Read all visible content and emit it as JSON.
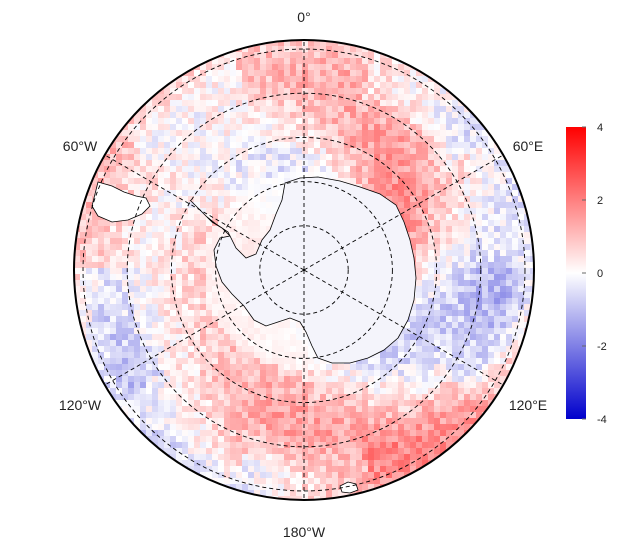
{
  "map": {
    "projection": "south-polar-stereographic",
    "longitude_labels": {
      "top": "0°",
      "upper_left": "60°W",
      "upper_right": "60°E",
      "lower_left": "120°W",
      "lower_right": "120°E",
      "bottom": "180°W"
    },
    "graticule": {
      "meridian_step_deg": 60,
      "latitude_rings": 5,
      "line_style": "dashed"
    },
    "field": {
      "description_colors": "diverging",
      "low_color": "#0000cc",
      "mid_color": "#ffffff",
      "high_color": "#ff0000"
    }
  },
  "colorbar": {
    "min": -4,
    "max": 4,
    "ticks": [
      "4",
      "2",
      "0",
      "-2",
      "-4"
    ],
    "tick_values": [
      4,
      2,
      0,
      -2,
      -4
    ]
  }
}
